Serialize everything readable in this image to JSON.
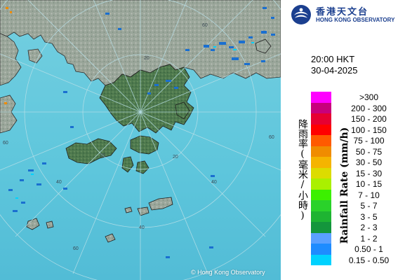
{
  "header": {
    "logo_cn": "香港天文台",
    "logo_en": "HONG KONG OBSERVATORY"
  },
  "time": "20:00 HKT",
  "date": "30-04-2025",
  "legend": {
    "title_cn": "降雨率(毫米/小時)",
    "title_en": "Rainfall Rate (mm/h)",
    "items": [
      {
        "label": ">300",
        "color": "#ff00ff"
      },
      {
        "label": "200 - 300",
        "color": "#c8007c"
      },
      {
        "label": "150 - 200",
        "color": "#e60032"
      },
      {
        "label": "100 - 150",
        "color": "#ff0000"
      },
      {
        "label": "75 - 100",
        "color": "#ff5a00"
      },
      {
        "label": "50 - 75",
        "color": "#f08c00"
      },
      {
        "label": "30 - 50",
        "color": "#f5b400"
      },
      {
        "label": "15 - 30",
        "color": "#dcdc00"
      },
      {
        "label": "10 - 15",
        "color": "#aaf000"
      },
      {
        "label": "7 - 10",
        "color": "#3cf000"
      },
      {
        "label": "5 - 7",
        "color": "#2ad22a"
      },
      {
        "label": "3 - 5",
        "color": "#1eb432"
      },
      {
        "label": "2 - 3",
        "color": "#14963c"
      },
      {
        "label": "1 - 2",
        "color": "#5aa0ff"
      },
      {
        "label": "0.50 - 1",
        "color": "#1e8cff"
      },
      {
        "label": "0.15 - 0.50",
        "color": "#00d2ff"
      }
    ]
  },
  "map": {
    "range_ring_labels": [
      "20",
      "40",
      "60",
      "60",
      "40",
      "20",
      "20",
      "40",
      "60",
      "40",
      "60"
    ],
    "copyright": "© Hong Kong Observatory"
  }
}
